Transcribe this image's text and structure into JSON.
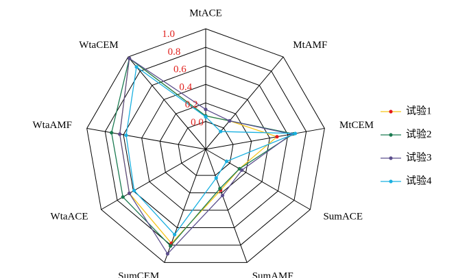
{
  "chart_data": {
    "type": "radar",
    "categories": [
      "MtACE",
      "MtAMF",
      "MtCEM",
      "SumACE",
      "SumAMF",
      "SumCEM",
      "WtaACE",
      "WtaAMF",
      "WtaCEM"
    ],
    "rlim": [
      -0.3,
      1.0
    ],
    "rticks": [
      {
        "value": 0,
        "label": "0.0"
      },
      0.2,
      0.4,
      0.6,
      0.8,
      {
        "value": 1,
        "label": "1.0"
      }
    ],
    "tick_label_color": "#e0201c",
    "series": [
      {
        "name": "试验1",
        "color": "#f5c518",
        "marker_color": "#e31a1c",
        "values": [
          0.06,
          0.1,
          0.48,
          0.12,
          0.17,
          0.78,
          0.65,
          0.64,
          0.98
        ]
      },
      {
        "name": "试验2",
        "color": "#1a7a50",
        "marker_color": "#1a7a50",
        "values": [
          0.06,
          0.1,
          0.66,
          0.12,
          0.15,
          0.81,
          0.73,
          0.73,
          0.98
        ]
      },
      {
        "name": "试验3",
        "color": "#5b4e8c",
        "marker_color": "#5b4e8c",
        "values": [
          0.13,
          0.1,
          0.64,
          0.15,
          0.23,
          0.9,
          0.65,
          0.64,
          0.98
        ]
      },
      {
        "name": "试验4",
        "color": "#1ab0e0",
        "marker_color": "#1ab0e0",
        "values": [
          0.05,
          -0.05,
          0.68,
          -0.04,
          0.03,
          0.68,
          0.59,
          0.57,
          0.86
        ]
      }
    ]
  }
}
